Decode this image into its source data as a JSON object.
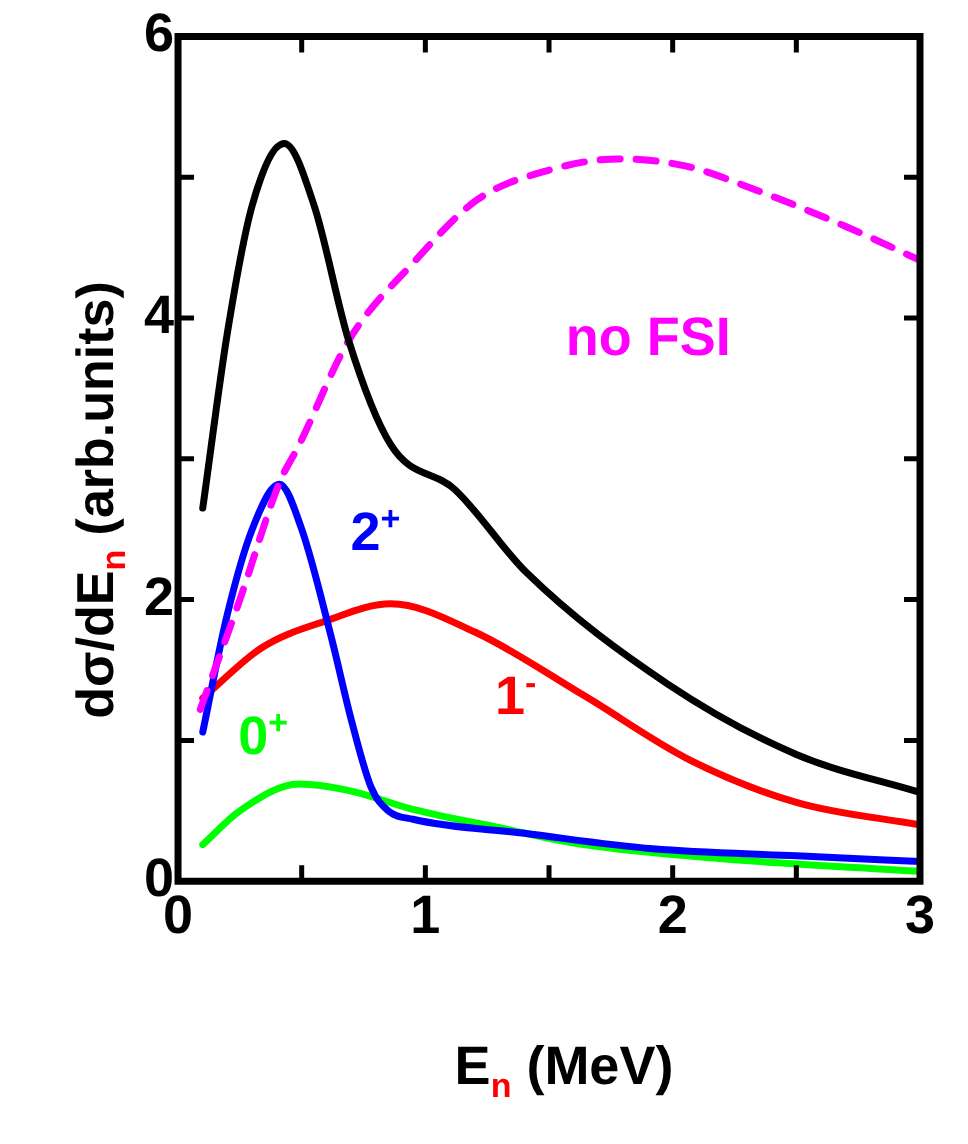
{
  "chart_data": {
    "type": "line",
    "xlabel": "E$_{n}$ (MeV)",
    "ylabel": "dσ/dE$_{n}$ (arb.units)",
    "xlim": [
      0,
      3
    ],
    "xticks": [
      0,
      {
        "value": 0.5,
        "label": null
      },
      1,
      {
        "value": 1.5,
        "label": null
      },
      2,
      {
        "value": 2.5,
        "label": null
      },
      3
    ],
    "ylim": [
      0,
      6
    ],
    "yticks": [
      0,
      {
        "value": 1,
        "label": null
      },
      2,
      {
        "value": 3,
        "label": null
      },
      4,
      {
        "value": 5,
        "label": null
      },
      6
    ],
    "grid": false,
    "legend": false,
    "marker": "none",
    "series": [
      {
        "color": "#000000",
        "x": [
          0.1,
          0.2,
          0.3,
          0.43,
          0.55,
          0.69,
          0.86,
          1.12,
          1.41,
          1.98,
          2.5,
          3
        ],
        "values": [
          2.65,
          3.9,
          4.8,
          5.24,
          4.8,
          3.84,
          3.1,
          2.78,
          2.19,
          1.4,
          0.9,
          0.63
        ]
      },
      {
        "name": "no FSI",
        "color": "#ff00ff",
        "line_style": "dashed",
        "x": [
          0.09,
          0.25,
          0.41,
          0.49,
          0.69,
          0.95,
          1.21,
          1.5,
          1.78,
          2.05,
          2.35,
          2.7,
          3
        ],
        "values": [
          1.22,
          2.0,
          2.83,
          3.1,
          3.84,
          4.39,
          4.84,
          5.05,
          5.13,
          5.08,
          4.9,
          4.65,
          4.41
        ]
      },
      {
        "name": "2$^{+}$",
        "color": "#0000ff",
        "x": [
          0.1,
          0.2,
          0.3,
          0.41,
          0.5,
          0.62,
          0.7,
          0.78,
          0.85,
          0.95,
          1.4,
          1.92,
          2.5,
          3
        ],
        "values": [
          1.06,
          1.9,
          2.5,
          2.82,
          2.5,
          1.73,
          1.15,
          0.67,
          0.5,
          0.44,
          0.34,
          0.23,
          0.18,
          0.14
        ]
      },
      {
        "name": "1$^{-}$",
        "color": "#ff0000",
        "x": [
          0.1,
          0.34,
          0.6,
          0.86,
          1.2,
          1.64,
          2.07,
          2.5,
          3
        ],
        "values": [
          1.3,
          1.66,
          1.85,
          1.97,
          1.77,
          1.32,
          0.86,
          0.56,
          0.4
        ]
      },
      {
        "name": "0$^{+}$",
        "color": "#00ff00",
        "x": [
          0.1,
          0.25,
          0.49,
          0.7,
          0.95,
          1.3,
          1.64,
          2.2,
          3
        ],
        "values": [
          0.26,
          0.5,
          0.69,
          0.64,
          0.51,
          0.38,
          0.26,
          0.16,
          0.07
        ]
      }
    ]
  }
}
